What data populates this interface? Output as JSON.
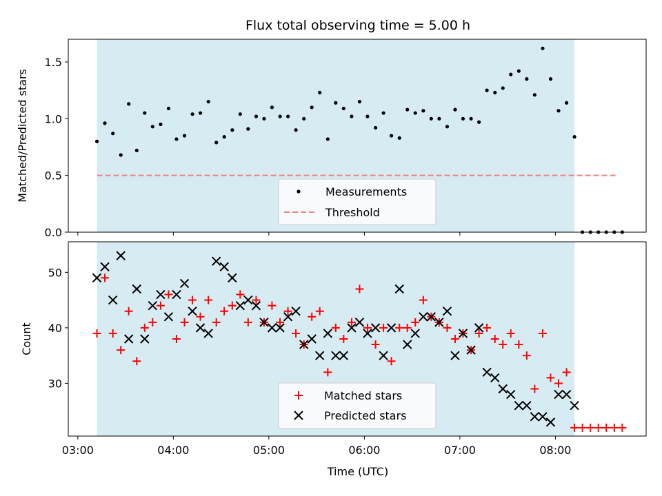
{
  "chart_data": [
    {
      "type": "scatter",
      "title": "Flux total observing time = 5.00 h",
      "ylabel": "Matched/Predicted stars",
      "xlim_hours": [
        2.9,
        8.95
      ],
      "ylim": [
        0,
        1.7
      ],
      "yticks": [
        0.0,
        0.5,
        1.0,
        1.5
      ],
      "ytick_labels": [
        "0.0",
        "0.5",
        "1.0",
        "1.5"
      ],
      "shaded_span_hours": [
        3.2,
        8.2
      ],
      "shaded_color": "#add8e6",
      "threshold": {
        "name": "Threshold",
        "y": 0.5,
        "x_range_hours": [
          3.2,
          8.65
        ],
        "color": "#f08080"
      },
      "series": [
        {
          "name": "Measurements",
          "color": "#000000",
          "x_hours": [
            3.2,
            3.283,
            3.367,
            3.45,
            3.533,
            3.617,
            3.7,
            3.783,
            3.867,
            3.95,
            4.033,
            4.117,
            4.2,
            4.283,
            4.367,
            4.45,
            4.533,
            4.617,
            4.7,
            4.783,
            4.867,
            4.95,
            5.033,
            5.117,
            5.2,
            5.283,
            5.367,
            5.45,
            5.533,
            5.617,
            5.7,
            5.783,
            5.867,
            5.95,
            6.033,
            6.117,
            6.2,
            6.283,
            6.367,
            6.45,
            6.533,
            6.617,
            6.7,
            6.783,
            6.867,
            6.95,
            7.033,
            7.117,
            7.2,
            7.283,
            7.367,
            7.45,
            7.533,
            7.617,
            7.7,
            7.783,
            7.867,
            7.95,
            8.033,
            8.117,
            8.2,
            8.283,
            8.367,
            8.45,
            8.533,
            8.617,
            8.7
          ],
          "values": [
            0.8,
            0.96,
            0.87,
            0.68,
            1.13,
            0.72,
            1.05,
            0.93,
            0.95,
            1.09,
            0.82,
            0.85,
            1.04,
            1.05,
            1.15,
            0.79,
            0.84,
            0.9,
            1.04,
            0.91,
            1.02,
            1.0,
            1.1,
            1.02,
            1.02,
            0.9,
            1.0,
            1.1,
            1.23,
            0.82,
            1.14,
            1.09,
            1.02,
            1.15,
            1.02,
            0.92,
            1.05,
            0.85,
            0.83,
            1.08,
            1.05,
            1.07,
            1.0,
            1.0,
            0.93,
            1.08,
            1.0,
            1.0,
            0.97,
            1.25,
            1.23,
            1.27,
            1.39,
            1.42,
            1.35,
            1.21,
            1.62,
            1.35,
            1.07,
            1.14,
            0.84,
            0.0,
            0.0,
            0.0,
            0.0,
            0.0,
            0.0
          ]
        }
      ],
      "legend": {
        "placement": "lower-center",
        "entries": [
          "Measurements",
          "Threshold"
        ]
      }
    },
    {
      "type": "scatter",
      "xlabel": "Time (UTC)",
      "ylabel": "Count",
      "xlim_hours": [
        2.9,
        8.95
      ],
      "ylim": [
        20.5,
        55.5
      ],
      "yticks": [
        30,
        40,
        50
      ],
      "ytick_labels": [
        "30",
        "40",
        "50"
      ],
      "xticks_hours": [
        3,
        4,
        5,
        6,
        7,
        8
      ],
      "xtick_labels": [
        "03:00",
        "04:00",
        "05:00",
        "06:00",
        "07:00",
        "08:00"
      ],
      "shaded_span_hours": [
        3.2,
        8.2
      ],
      "shaded_color": "#add8e6",
      "series": [
        {
          "name": "Matched stars",
          "marker": "+",
          "color": "#ff0000",
          "x_hours": [
            3.2,
            3.283,
            3.367,
            3.45,
            3.533,
            3.617,
            3.7,
            3.783,
            3.867,
            3.95,
            4.033,
            4.117,
            4.2,
            4.283,
            4.367,
            4.45,
            4.533,
            4.617,
            4.7,
            4.783,
            4.867,
            4.95,
            5.033,
            5.117,
            5.2,
            5.283,
            5.367,
            5.45,
            5.533,
            5.617,
            5.7,
            5.783,
            5.867,
            5.95,
            6.033,
            6.117,
            6.2,
            6.283,
            6.367,
            6.45,
            6.533,
            6.617,
            6.7,
            6.783,
            6.867,
            6.95,
            7.033,
            7.117,
            7.2,
            7.283,
            7.367,
            7.45,
            7.533,
            7.617,
            7.7,
            7.783,
            7.867,
            7.95,
            8.033,
            8.117,
            8.2,
            8.283,
            8.367,
            8.45,
            8.533,
            8.617,
            8.7
          ],
          "values": [
            39,
            49,
            39,
            36,
            43,
            34,
            40,
            41,
            44,
            46,
            38,
            41,
            45,
            42,
            45,
            41,
            43,
            44,
            46,
            41,
            45,
            41,
            44,
            41,
            43,
            39,
            37,
            42,
            43,
            32,
            40,
            38,
            41,
            47,
            40,
            37,
            40,
            34,
            40,
            40,
            41,
            45,
            42,
            41,
            40,
            38,
            39,
            36,
            39,
            40,
            38,
            37,
            39,
            37,
            35,
            29,
            39,
            31,
            30,
            32,
            22,
            22,
            22,
            22,
            22,
            22,
            22
          ]
        },
        {
          "name": "Predicted stars",
          "marker": "x",
          "color": "#000000",
          "x_hours": [
            3.2,
            3.283,
            3.367,
            3.45,
            3.533,
            3.617,
            3.7,
            3.783,
            3.867,
            3.95,
            4.033,
            4.117,
            4.2,
            4.283,
            4.367,
            4.45,
            4.533,
            4.617,
            4.7,
            4.783,
            4.867,
            4.95,
            5.033,
            5.117,
            5.2,
            5.283,
            5.367,
            5.45,
            5.533,
            5.617,
            5.7,
            5.783,
            5.867,
            5.95,
            6.033,
            6.117,
            6.2,
            6.283,
            6.367,
            6.45,
            6.533,
            6.617,
            6.7,
            6.783,
            6.867,
            6.95,
            7.033,
            7.117,
            7.2,
            7.283,
            7.367,
            7.45,
            7.533,
            7.617,
            7.7,
            7.783,
            7.867,
            7.95,
            8.033,
            8.117,
            8.2
          ],
          "values": [
            49,
            51,
            45,
            53,
            38,
            47,
            38,
            44,
            46,
            42,
            46,
            48,
            43,
            40,
            39,
            52,
            51,
            49,
            44,
            45,
            44,
            41,
            40,
            40,
            42,
            43,
            37,
            38,
            35,
            39,
            35,
            35,
            40,
            41,
            39,
            40,
            35,
            40,
            47,
            37,
            39,
            42,
            42,
            41,
            43,
            35,
            39,
            36,
            40,
            32,
            31,
            29,
            28,
            26,
            26,
            24,
            24,
            23,
            28,
            28,
            26
          ]
        }
      ],
      "legend": {
        "placement": "lower-center",
        "entries": [
          "Matched stars",
          "Predicted stars"
        ]
      }
    }
  ]
}
